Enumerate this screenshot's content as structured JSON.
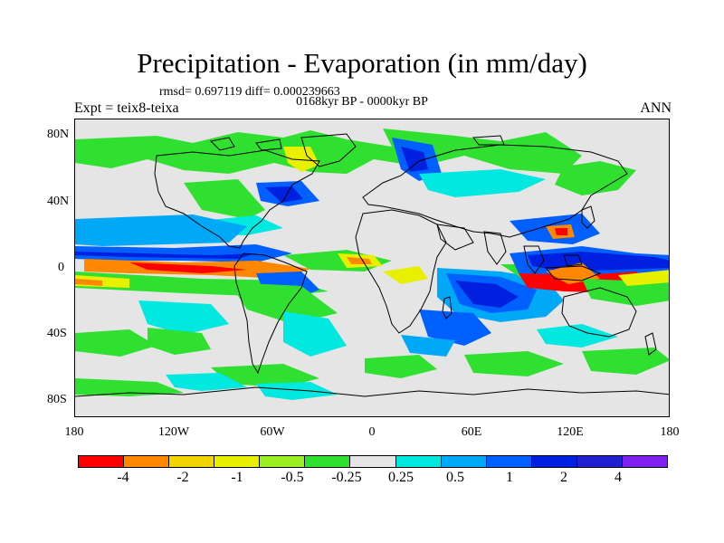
{
  "title": "Precipitation - Evaporation (in mm/day)",
  "stats": "rmsd= 0.697119 diff= 0.000239663",
  "period": "0168kyr BP - 0000kyr BP",
  "experiment": "Expt = teix8-teixa",
  "season": "ANN",
  "lat_labels": [
    "80N",
    "40N",
    "0",
    "40S",
    "80S"
  ],
  "lon_labels": [
    "180",
    "120W",
    "60W",
    "0",
    "60E",
    "120E",
    "180"
  ],
  "colorbar": {
    "colors": [
      "#ff0000",
      "#ff8800",
      "#f2d400",
      "#e8f000",
      "#99f020",
      "#30e030",
      "#e5e5e5",
      "#00e8e0",
      "#00a8f8",
      "#0060ff",
      "#0020e0",
      "#2020d0",
      "#8020f0"
    ],
    "labels": [
      "-4",
      "-2",
      "-1",
      "-0.5",
      "-0.25",
      "0.25",
      "0.5",
      "1",
      "2",
      "4"
    ]
  },
  "field": {
    "variable": "P-E difference",
    "units": "mm/day",
    "lat_range": [
      -90,
      90
    ],
    "lon_range": [
      -180,
      180
    ]
  }
}
